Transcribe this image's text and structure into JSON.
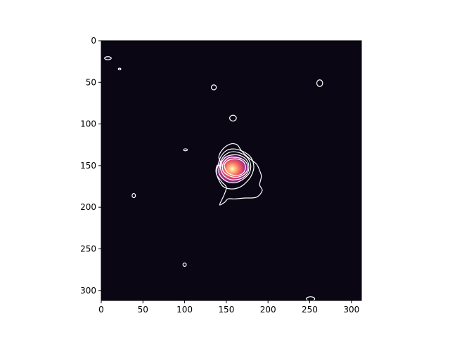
{
  "chart_data": {
    "type": "heatmap",
    "title": "",
    "xlabel": "",
    "ylabel": "",
    "xlim": [
      0,
      312
    ],
    "ylim": [
      312,
      0
    ],
    "x_ticks": [
      0,
      50,
      100,
      150,
      200,
      250,
      300
    ],
    "y_ticks": [
      0,
      50,
      100,
      150,
      200,
      250,
      300
    ],
    "x_tick_labels": [
      "0",
      "50",
      "100",
      "150",
      "200",
      "250",
      "300"
    ],
    "y_tick_labels": [
      "0",
      "50",
      "100",
      "150",
      "200",
      "250",
      "300"
    ],
    "grid": false,
    "colormap": "magma",
    "background_color": "#0a0614",
    "contour_color": "#ffffff",
    "source": {
      "x": 157,
      "y": 154,
      "peak": 1.0,
      "width": 10
    },
    "contour_loops": [
      {
        "name": "outer-envelope",
        "points": [
          [
            145,
            150
          ],
          [
            141,
            140
          ],
          [
            146,
            130
          ],
          [
            155,
            124
          ],
          [
            163,
            125
          ],
          [
            168,
            132
          ],
          [
            176,
            140
          ],
          [
            186,
            148
          ],
          [
            190,
            156
          ],
          [
            192,
            163
          ],
          [
            190,
            173
          ],
          [
            193,
            180
          ],
          [
            186,
            188
          ],
          [
            171,
            189
          ],
          [
            160,
            190
          ],
          [
            152,
            190
          ],
          [
            148,
            194
          ],
          [
            142,
            197
          ],
          [
            147,
            186
          ],
          [
            150,
            176
          ],
          [
            145,
            170
          ],
          [
            138,
            160
          ],
          [
            139,
            150
          ]
        ]
      },
      {
        "name": "contour-level-2",
        "points": [
          [
            140,
            150
          ],
          [
            143,
            140
          ],
          [
            150,
            132
          ],
          [
            160,
            130
          ],
          [
            172,
            134
          ],
          [
            180,
            141
          ],
          [
            183,
            152
          ],
          [
            180,
            162
          ],
          [
            174,
            170
          ],
          [
            166,
            176
          ],
          [
            156,
            178
          ],
          [
            146,
            175
          ],
          [
            140,
            165
          ],
          [
            138,
            157
          ]
        ]
      },
      {
        "name": "contour-level-3",
        "points": [
          [
            142,
            150
          ],
          [
            146,
            140
          ],
          [
            154,
            134
          ],
          [
            164,
            134
          ],
          [
            174,
            139
          ],
          [
            179,
            148
          ],
          [
            178,
            158
          ],
          [
            172,
            165
          ],
          [
            163,
            170
          ],
          [
            153,
            170
          ],
          [
            145,
            165
          ],
          [
            141,
            158
          ]
        ]
      },
      {
        "name": "contour-level-4",
        "points": [
          [
            143,
            149
          ],
          [
            149,
            140
          ],
          [
            158,
            137
          ],
          [
            167,
            138
          ],
          [
            175,
            144
          ],
          [
            177,
            153
          ],
          [
            174,
            161
          ],
          [
            166,
            166
          ],
          [
            156,
            167
          ],
          [
            148,
            163
          ],
          [
            144,
            157
          ]
        ]
      },
      {
        "name": "contour-level-5",
        "points": [
          [
            146,
            148
          ],
          [
            152,
            141
          ],
          [
            160,
            140
          ],
          [
            169,
            142
          ],
          [
            175,
            148
          ],
          [
            175,
            156
          ],
          [
            169,
            162
          ],
          [
            160,
            164
          ],
          [
            151,
            161
          ],
          [
            146,
            156
          ]
        ]
      },
      {
        "name": "contour-level-6",
        "points": [
          [
            148,
            148
          ],
          [
            154,
            143
          ],
          [
            162,
            142
          ],
          [
            170,
            145
          ],
          [
            173,
            152
          ],
          [
            170,
            159
          ],
          [
            162,
            162
          ],
          [
            154,
            160
          ],
          [
            149,
            155
          ]
        ]
      }
    ],
    "contour_blobs": [
      {
        "x": 8,
        "y": 21,
        "rx": 4,
        "ry": 1.8
      },
      {
        "x": 22,
        "y": 34,
        "rx": 1.5,
        "ry": 1
      },
      {
        "x": 135,
        "y": 56,
        "rx": 3,
        "ry": 3
      },
      {
        "x": 262,
        "y": 51,
        "rx": 3.5,
        "ry": 4
      },
      {
        "x": 158,
        "y": 93,
        "rx": 4,
        "ry": 3.5
      },
      {
        "x": 101,
        "y": 131,
        "rx": 2.3,
        "ry": 1.2
      },
      {
        "x": 39,
        "y": 186,
        "rx": 2,
        "ry": 2.5
      },
      {
        "x": 100,
        "y": 269,
        "rx": 2,
        "ry": 2
      },
      {
        "x": 251,
        "y": 310,
        "rx": 5,
        "ry": 2.5
      }
    ]
  }
}
